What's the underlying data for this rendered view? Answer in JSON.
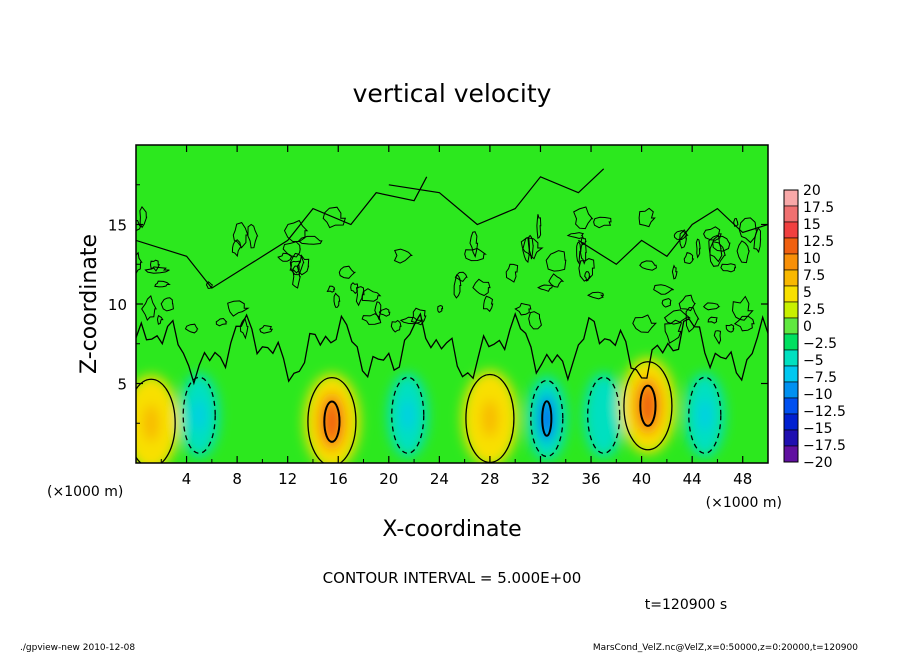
{
  "chart_data": {
    "type": "heatmap",
    "title": "vertical velocity",
    "xlabel": "X-coordinate",
    "ylabel": "Z-coordinate",
    "x_unit": "(×1000 m)",
    "x_unit_right": "(×1000 m)",
    "xlim": [
      0,
      50
    ],
    "ylim": [
      0,
      20
    ],
    "x_ticks": [
      "4",
      "8",
      "12",
      "16",
      "20",
      "24",
      "28",
      "32",
      "36",
      "40",
      "44",
      "48"
    ],
    "y_ticks": [
      "5",
      "10",
      "15"
    ],
    "colorbar_labels": [
      "20",
      "17.5",
      "15",
      "12.5",
      "10",
      "7.5",
      "5",
      "2.5",
      "0",
      "−2.5",
      "−5",
      "−7.5",
      "−10",
      "−12.5",
      "−15",
      "−17.5",
      "−20"
    ],
    "colorbar_colors": [
      "#f8a8a8",
      "#f07070",
      "#f04040",
      "#f06010",
      "#f89008",
      "#f8b800",
      "#f8e000",
      "#c8f000",
      "#60e840",
      "#00e060",
      "#00e0c0",
      "#00c8f0",
      "#0090f0",
      "#0050f0",
      "#0020d0",
      "#2010b0",
      "#6010a0"
    ],
    "features": [
      {
        "x": 1.2,
        "z": 2.5,
        "peak": 7.5
      },
      {
        "x": 5.0,
        "z": 3.0,
        "peak": -7.5
      },
      {
        "x": 15.5,
        "z": 2.6,
        "peak": 12.5
      },
      {
        "x": 21.5,
        "z": 3.0,
        "peak": -7.5
      },
      {
        "x": 28.0,
        "z": 2.8,
        "peak": 7.5
      },
      {
        "x": 32.5,
        "z": 2.8,
        "peak": -12.5
      },
      {
        "x": 37.0,
        "z": 3.0,
        "peak": -5
      },
      {
        "x": 40.5,
        "z": 3.6,
        "peak": 12.5
      },
      {
        "x": 45.0,
        "z": 3.0,
        "peak": -7.5
      }
    ],
    "contour_interval_text": "CONTOUR INTERVAL = 5.000E+00",
    "time_text": "t=120900 s"
  },
  "footer": {
    "left": "./gpview-new  2010-12-08",
    "right": "MarsCond_VelZ.nc@VelZ,x=0:50000,z=0:20000,t=120900"
  }
}
